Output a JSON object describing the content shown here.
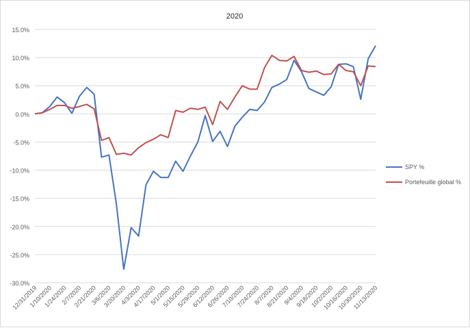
{
  "chart_data": {
    "type": "line",
    "title": "2020",
    "xlabel": "",
    "ylabel": "",
    "ylim": [
      -30,
      15
    ],
    "yticks": [
      15,
      10,
      5,
      0,
      -5,
      -10,
      -15,
      -20,
      -25,
      -30
    ],
    "y_tick_labels": [
      "15.0%",
      "10.0%",
      "5.0%",
      "0.0%",
      "-5.0%",
      "-10.0%",
      "-15.0%",
      "-20.0%",
      "-25.0%",
      "-30.0%"
    ],
    "grid": true,
    "legend_position": "right",
    "x": [
      "12/31/2019",
      "1/3/2020",
      "1/10/2020",
      "1/17/2020",
      "1/24/2020",
      "1/31/2020",
      "2/7/2020",
      "2/14/2020",
      "2/21/2020",
      "2/28/2020",
      "3/6/2020",
      "3/13/2020",
      "3/20/2020",
      "3/27/2020",
      "4/3/2020",
      "4/10/2020",
      "4/17/2020",
      "4/24/2020",
      "5/1/2020",
      "5/8/2020",
      "5/15/2020",
      "5/22/2020",
      "5/29/2020",
      "6/5/2020",
      "6/12/2020",
      "6/19/2020",
      "6/26/2020",
      "7/3/2020",
      "7/10/2020",
      "7/17/2020",
      "7/24/2020",
      "7/31/2020",
      "8/7/2020",
      "8/14/2020",
      "8/21/2020",
      "8/28/2020",
      "9/4/2020",
      "9/11/2020",
      "9/18/2020",
      "9/25/2020",
      "10/2/2020",
      "10/9/2020",
      "10/16/2020",
      "10/23/2020",
      "10/30/2020",
      "11/6/2020",
      "11/13/2020"
    ],
    "x_tick_labels": [
      "12/31/2019",
      "1/10/2020",
      "1/24/2020",
      "2/7/2020",
      "2/21/2020",
      "3/6/2020",
      "3/20/2020",
      "4/3/2020",
      "4/17/2020",
      "5/1/2020",
      "5/15/2020",
      "5/29/2020",
      "6/12/2020",
      "6/26/2020",
      "7/10/2020",
      "7/24/2020",
      "8/7/2020",
      "8/21/2020",
      "9/4/2020",
      "9/18/2020",
      "10/2/2020",
      "10/16/2020",
      "10/30/2020",
      "11/13/2020"
    ],
    "x_tick_index": [
      0,
      2,
      4,
      6,
      8,
      10,
      12,
      14,
      16,
      18,
      20,
      22,
      24,
      26,
      28,
      30,
      32,
      34,
      36,
      38,
      40,
      42,
      44,
      46
    ],
    "series": [
      {
        "name": "SPY %",
        "color": "#4472c4",
        "values": [
          0.0,
          0.2,
          1.3,
          3.0,
          2.0,
          0.1,
          3.1,
          4.7,
          3.5,
          -7.7,
          -7.3,
          -16.0,
          -27.6,
          -20.2,
          -21.7,
          -12.6,
          -10.2,
          -11.3,
          -11.3,
          -8.4,
          -10.2,
          -7.5,
          -5.0,
          -0.3,
          -4.9,
          -3.1,
          -5.8,
          -2.2,
          -0.6,
          0.8,
          0.6,
          2.1,
          4.7,
          5.3,
          6.1,
          9.5,
          7.5,
          4.5,
          3.9,
          3.3,
          4.8,
          8.8,
          8.9,
          8.4,
          2.6,
          9.8,
          12.1
        ]
      },
      {
        "name": "Portefeuille global %",
        "color": "#c0504d",
        "values": [
          0.0,
          0.2,
          0.8,
          1.5,
          1.5,
          1.0,
          1.3,
          1.7,
          0.9,
          -4.7,
          -4.2,
          -7.2,
          -7.0,
          -7.3,
          -6.0,
          -5.1,
          -4.5,
          -3.7,
          -4.2,
          0.6,
          0.3,
          1.0,
          0.8,
          1.2,
          -1.9,
          2.2,
          0.8,
          3.0,
          5.0,
          4.4,
          4.4,
          8.2,
          10.4,
          9.5,
          9.4,
          10.2,
          7.7,
          7.4,
          7.6,
          7.0,
          7.1,
          8.8,
          7.7,
          7.5,
          5.0,
          8.5,
          8.4
        ]
      }
    ]
  }
}
